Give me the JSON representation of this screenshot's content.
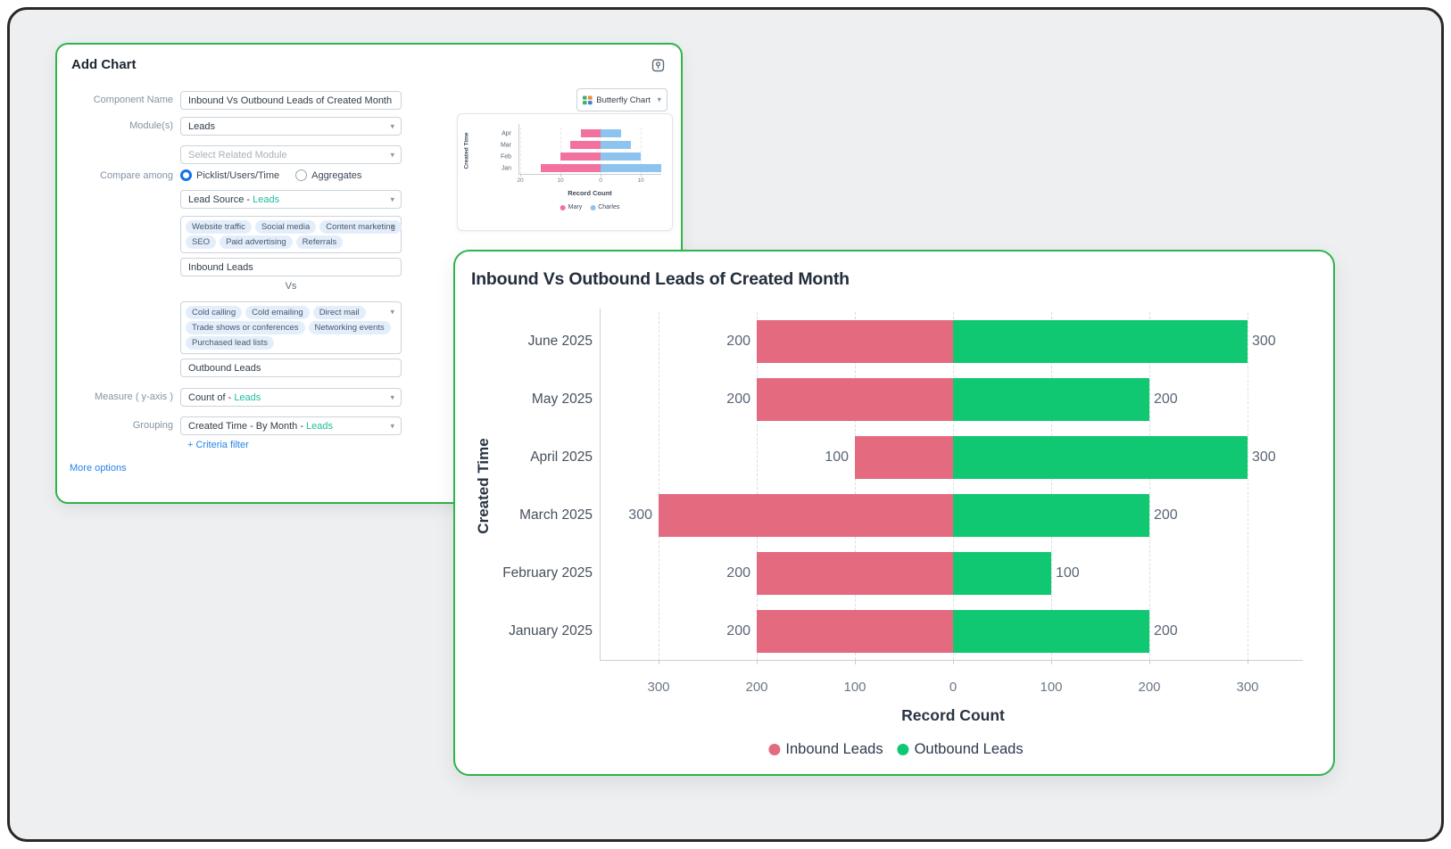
{
  "dialog": {
    "title": "Add Chart",
    "chart_type_selector": {
      "label": "Butterfly Chart"
    },
    "rows": {
      "component_name": {
        "label": "Component Name",
        "value": "Inbound Vs Outbound Leads of Created Month"
      },
      "modules": {
        "label": "Module(s)",
        "value": "Leads"
      },
      "related_module": {
        "placeholder": "Select Related Module"
      },
      "compare_among": {
        "label": "Compare among",
        "option1": "Picklist/Users/Time",
        "option2": "Aggregates",
        "selected": "Picklist/Users/Time"
      },
      "compare_field": {
        "value": "Lead Source -",
        "link": "Leads"
      },
      "inbound": {
        "chips": [
          "Website traffic",
          "Social media",
          "Content marketing",
          "SEO",
          "Paid advertising",
          "Referrals"
        ],
        "name": "Inbound Leads"
      },
      "vs_label": "Vs",
      "outbound": {
        "chips": [
          "Cold calling",
          "Cold emailing",
          "Direct mail",
          "Trade shows or conferences",
          "Networking events",
          "Purchased lead lists"
        ],
        "name": "Outbound Leads"
      },
      "measure": {
        "label": "Measure ( y-axis )",
        "value": "Count of -",
        "link": "Leads"
      },
      "grouping": {
        "label": "Grouping",
        "value": "Created Time - By Month -",
        "link": "Leads"
      }
    },
    "criteria_filter": "+ Criteria filter",
    "more_options": "More options"
  },
  "chart_data": [
    {
      "id": "preview",
      "type": "bar",
      "subtype": "butterfly",
      "title": "",
      "categories": [
        "Apr",
        "Mar",
        "Feb",
        "Jan"
      ],
      "series": [
        {
          "name": "Mary",
          "color": "#f2719e",
          "values": [
            5,
            7.5,
            10,
            15
          ]
        },
        {
          "name": "Charles",
          "color": "#8dc3ef",
          "values": [
            5,
            7.5,
            10,
            15
          ]
        }
      ],
      "x_ticks": [
        {
          "label": "20",
          "value": -20
        },
        {
          "label": "10",
          "value": -10
        },
        {
          "label": "0",
          "value": 0
        },
        {
          "label": "10",
          "value": 10
        }
      ],
      "xlabel": "Record Count",
      "ylabel": "Created Time",
      "axis_max": 20,
      "grid": "dashed-vertical",
      "legend_position": "bottom"
    },
    {
      "id": "main",
      "type": "bar",
      "subtype": "butterfly",
      "title": "Inbound Vs Outbound Leads of Created Month",
      "categories": [
        "June 2025",
        "May 2025",
        "April 2025",
        "March 2025",
        "February 2025",
        "January 2025"
      ],
      "series": [
        {
          "name": "Inbound Leads",
          "color": "#e36a7f",
          "values": [
            200,
            200,
            100,
            300,
            200,
            200
          ]
        },
        {
          "name": "Outbound Leads",
          "color": "#10c871",
          "values": [
            300,
            200,
            300,
            200,
            100,
            200
          ]
        }
      ],
      "x_ticks": [
        {
          "label": "300",
          "value": -300
        },
        {
          "label": "200",
          "value": -200
        },
        {
          "label": "100",
          "value": -100
        },
        {
          "label": "0",
          "value": 0
        },
        {
          "label": "100",
          "value": 100
        },
        {
          "label": "200",
          "value": 200
        },
        {
          "label": "300",
          "value": 300
        }
      ],
      "xlabel": "Record Count",
      "ylabel": "Created Time",
      "axis_max": 300,
      "grid": "dashed-vertical",
      "legend_position": "bottom",
      "show_values": true
    }
  ],
  "colors": {
    "panel_border_green": "#2db44b",
    "link_blue": "#2583e8",
    "module_teal": "#1fbd9f",
    "radio_blue": "#1472e6",
    "inbound_pink": "#e36a7f",
    "outbound_green": "#10c871",
    "preview_pink": "#f2719e",
    "preview_blue": "#8dc3ef"
  }
}
